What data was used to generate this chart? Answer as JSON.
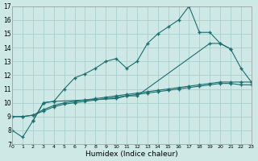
{
  "xlabel": "Humidex (Indice chaleur)",
  "background_color": "#cde8e5",
  "grid_color": "#aacfcc",
  "line_color": "#1a6e6e",
  "ylim": [
    7,
    17
  ],
  "xlim": [
    0,
    23
  ],
  "yticks": [
    7,
    8,
    9,
    10,
    11,
    12,
    13,
    14,
    15,
    16,
    17
  ],
  "xticks": [
    0,
    1,
    2,
    3,
    4,
    5,
    6,
    7,
    8,
    9,
    10,
    11,
    12,
    13,
    14,
    15,
    16,
    17,
    18,
    19,
    20,
    21,
    22,
    23
  ],
  "s1_x": [
    0,
    1,
    2,
    3,
    4,
    5,
    6,
    7,
    8,
    9,
    10,
    11,
    12,
    13,
    14,
    15,
    16,
    17,
    18,
    19,
    20,
    21
  ],
  "s1_y": [
    8.0,
    7.5,
    8.7,
    10.0,
    10.1,
    11.0,
    11.8,
    12.1,
    12.5,
    13.0,
    13.2,
    12.5,
    13.0,
    14.3,
    15.0,
    15.5,
    16.0,
    17.0,
    15.1,
    15.1,
    14.3,
    13.9
  ],
  "s2_x": [
    2,
    3,
    4,
    10,
    11,
    12,
    19,
    20,
    21,
    22,
    23
  ],
  "s2_y": [
    8.7,
    10.0,
    10.1,
    10.3,
    10.5,
    10.5,
    14.3,
    14.3,
    13.9,
    12.5,
    11.5
  ],
  "s3_x": [
    0,
    1,
    2,
    3,
    4,
    5,
    6,
    7,
    8,
    9,
    10,
    11,
    12,
    13,
    14,
    15,
    16,
    17,
    18,
    19,
    20,
    21,
    22,
    23
  ],
  "s3_y": [
    9.0,
    9.0,
    9.1,
    9.5,
    9.8,
    10.0,
    10.1,
    10.2,
    10.3,
    10.4,
    10.5,
    10.6,
    10.7,
    10.8,
    10.9,
    11.0,
    11.1,
    11.2,
    11.3,
    11.4,
    11.5,
    11.5,
    11.5,
    11.5
  ],
  "s4_x": [
    0,
    1,
    2,
    3,
    4,
    5,
    6,
    7,
    8,
    9,
    10,
    11,
    12,
    13,
    14,
    15,
    16,
    17,
    18,
    19,
    20,
    21,
    22,
    23
  ],
  "s4_y": [
    9.0,
    9.0,
    9.1,
    9.4,
    9.7,
    9.9,
    10.0,
    10.1,
    10.2,
    10.3,
    10.4,
    10.5,
    10.6,
    10.7,
    10.8,
    10.9,
    11.0,
    11.1,
    11.2,
    11.3,
    11.4,
    11.4,
    11.3,
    11.3
  ]
}
